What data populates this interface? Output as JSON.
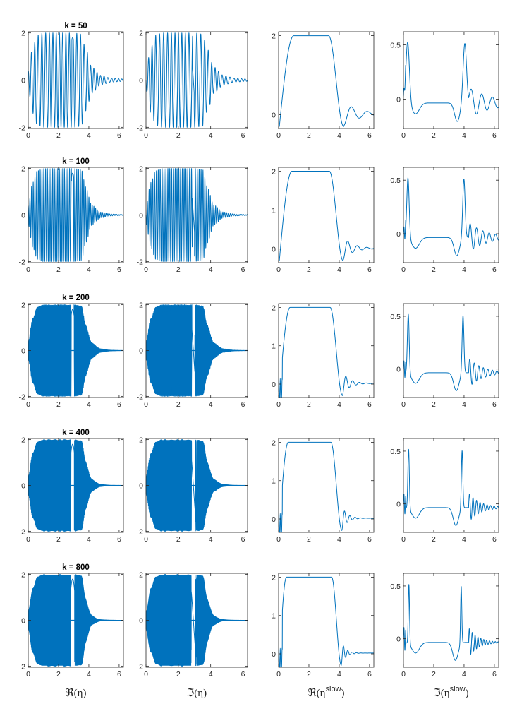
{
  "figure": {
    "column_labels": [
      {
        "text": "ℜ(η)"
      },
      {
        "text": "ℑ(η)"
      },
      {
        "text": "ℜ(η",
        "sup": "slow",
        "suffix": ")"
      },
      {
        "text": "ℑ(η",
        "sup": "slow",
        "suffix": ")"
      }
    ]
  },
  "chart_data": {
    "type": "line",
    "layout": "5x4 grid of small-multiple line plots; each row shares a wavenumber k (titled over the first column)",
    "columns": [
      "ℜ(η)",
      "ℑ(η)",
      "ℜ(η^slow)",
      "ℑ(η^slow)"
    ],
    "x_ticks": [
      0,
      2,
      4,
      6
    ],
    "xlim": [
      0,
      6.2832
    ],
    "rows": [
      {
        "title": "k = 50",
        "k": 50
      },
      {
        "title": "k = 100",
        "k": 100
      },
      {
        "title": "k = 200",
        "k": 200
      },
      {
        "title": "k = 400",
        "k": 400
      },
      {
        "title": "k = 800",
        "k": 800
      }
    ],
    "panel_axes": {
      "eta": {
        "ylim": [
          -2.05,
          2.05
        ],
        "y_ticks": [
          -2,
          0,
          2
        ],
        "y_tick_labels": [
          "-2",
          "0",
          "2"
        ]
      },
      "re_slow": {
        "ylim": [
          -0.35,
          2.1
        ],
        "y_ticks": [
          0,
          1,
          2
        ],
        "y_tick_labels": [
          "0",
          "1",
          "2"
        ]
      },
      "re_slow_r0": {
        "ylim": [
          -0.35,
          2.1
        ],
        "y_ticks": [
          0,
          2
        ],
        "y_tick_labels": [
          "0",
          "2"
        ]
      },
      "im_slow": {
        "ylim": [
          -0.27,
          0.62
        ],
        "y_ticks": [
          0,
          0.5
        ],
        "y_tick_labels": [
          "0",
          "0.5"
        ]
      }
    },
    "envelope": {
      "description": "fast oscillation of amplitude ≈2 over x∈[0.2,3.6] with a narrow gap near x≈2.9–3.0 and decay after x≈3.6",
      "x": [
        0,
        0.3,
        0.6,
        1.0,
        2.0,
        3.0,
        3.5,
        3.8,
        4.2,
        4.8,
        5.5,
        6.28
      ],
      "amplitude": [
        0.4,
        1.4,
        1.9,
        2.0,
        2.0,
        2.0,
        1.95,
        1.3,
        0.55,
        0.2,
        0.08,
        0.05
      ]
    },
    "re_slow_profile": {
      "description": "rises from ≈-0.3 near x=0 to a plateau at 2 over x≈1–3, falls to ≈-0.3 near x≈4.2, then decaying ripples around 0",
      "x": [
        0.05,
        0.5,
        1.0,
        1.5,
        2.0,
        2.5,
        3.0,
        3.5,
        4.0,
        4.3,
        5.0,
        6.28
      ],
      "y": [
        -0.3,
        1.3,
        1.95,
        2.0,
        2.0,
        2.0,
        2.0,
        1.7,
        0.4,
        -0.3,
        0.05,
        0.02
      ]
    },
    "im_slow_profile": {
      "description": "narrow peak ≈0.57 near x≈0.2–0.4, shallow trough ≈-0.1, flat ≈-0.03 plateau, dip ≈-0.18 near x≈3.6, second peak ≈0.55 near x≈3.9–4.1, then decaying oscillations",
      "x": [
        0.0,
        0.3,
        0.8,
        1.5,
        2.5,
        3.3,
        3.6,
        4.0,
        4.5,
        6.28
      ],
      "y": [
        0.0,
        0.57,
        -0.1,
        -0.04,
        -0.03,
        -0.1,
        -0.18,
        0.55,
        0.0,
        -0.1
      ]
    }
  }
}
